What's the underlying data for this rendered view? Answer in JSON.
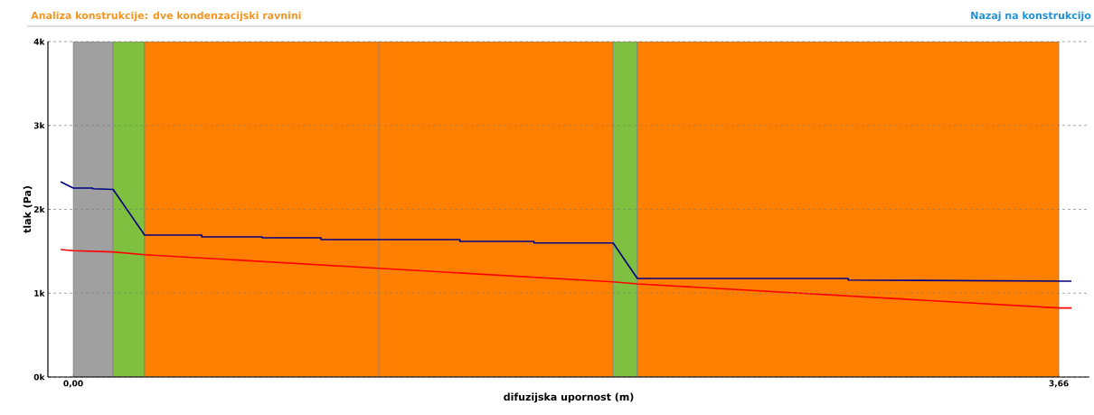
{
  "chart_data": {
    "type": "line",
    "title": "Analiza konstrukcije: dve kondenzacijski ravnini",
    "annotations": [
      "Nazaj na konstrukcijo"
    ],
    "xlabel": "difuzijska upornost (m)",
    "ylabel": "tlak (Pa)",
    "xlim": [
      -0.094,
      3.774
    ],
    "xticks": [
      {
        "value": 0,
        "label": "0,00"
      },
      {
        "value": 3.66,
        "label": "3,66"
      }
    ],
    "ylim": [
      0,
      4000
    ],
    "yticks": [
      {
        "value": 0,
        "label": "0k"
      },
      {
        "value": 1000,
        "label": "1k"
      },
      {
        "value": 2000,
        "label": "2k"
      },
      {
        "value": 3000,
        "label": "3k"
      },
      {
        "value": 4000,
        "label": "4k"
      }
    ],
    "grid": "y",
    "bands": [
      {
        "axis": "x",
        "from": 0,
        "to": 0.148,
        "color": "#a0a0a0"
      },
      {
        "axis": "x",
        "from": 0.148,
        "to": 0.265,
        "color": "#80c040"
      },
      {
        "axis": "x",
        "from": 0.265,
        "to": 1.135,
        "color": "#ff8000"
      },
      {
        "axis": "x",
        "from": 1.135,
        "to": 2.005,
        "color": "#ff8000"
      },
      {
        "axis": "x",
        "from": 2.005,
        "to": 2.095,
        "color": "#80c040"
      },
      {
        "axis": "x",
        "from": 2.095,
        "to": 3.66,
        "color": "#ff8000"
      }
    ],
    "series": [
      {
        "color": "#000080",
        "x": [
          -0.047,
          0.0,
          0.072,
          0.072,
          0.148,
          0.265,
          0.477,
          0.477,
          0.702,
          0.702,
          0.92,
          0.92,
          1.436,
          1.436,
          1.711,
          1.711,
          2.005,
          2.095,
          2.878,
          2.878,
          3.707
        ],
        "values": [
          2329,
          2253,
          2253,
          2245,
          2237,
          1693,
          1693,
          1671,
          1671,
          1660,
          1660,
          1639,
          1639,
          1617,
          1617,
          1599,
          1599,
          1175,
          1175,
          1157,
          1143
        ]
      },
      {
        "color": "#ff0000",
        "x": [
          -0.047,
          0.0,
          0.148,
          0.265,
          1.135,
          2.005,
          2.095,
          3.66,
          3.707
        ],
        "values": [
          1520,
          1506,
          1492,
          1459,
          1297,
          1135,
          1110,
          823,
          823
        ]
      }
    ]
  }
}
